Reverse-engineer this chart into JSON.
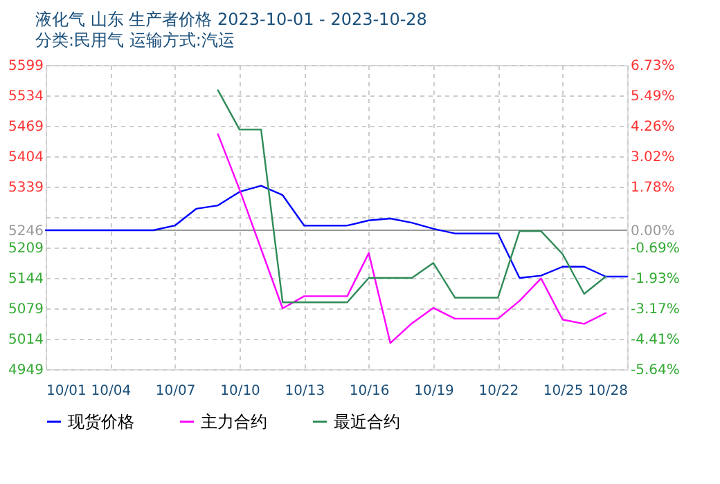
{
  "chart_data": {
    "type": "line",
    "title": "液化气 山东 生产者价格 2023-10-01 - 2023-10-28",
    "subtitle": "分类:民用气 运输方式:汽运",
    "x": [
      "2023-10-01",
      "2023-10-02",
      "2023-10-03",
      "2023-10-04",
      "2023-10-05",
      "2023-10-06",
      "2023-10-07",
      "2023-10-08",
      "2023-10-09",
      "2023-10-10",
      "2023-10-11",
      "2023-10-12",
      "2023-10-13",
      "2023-10-14",
      "2023-10-15",
      "2023-10-16",
      "2023-10-17",
      "2023-10-18",
      "2023-10-19",
      "2023-10-20",
      "2023-10-21",
      "2023-10-22",
      "2023-10-23",
      "2023-10-24",
      "2023-10-25",
      "2023-10-26",
      "2023-10-27",
      "2023-10-28"
    ],
    "series": [
      {
        "name": "现货价格",
        "color": "#0000ff",
        "values": [
          5246,
          5246,
          5246,
          5246,
          5246,
          5246,
          5256,
          5292,
          5299,
          5328,
          5341,
          5321,
          5256,
          5256,
          5256,
          5267,
          5271,
          5262,
          5249,
          5239,
          5239,
          5239,
          5144,
          5149,
          5168,
          5168,
          5147,
          5147
        ]
      },
      {
        "name": "主力合约",
        "color": "#ff00ff",
        "values": [
          null,
          null,
          null,
          null,
          null,
          null,
          null,
          null,
          5451,
          5333,
          5206,
          5079,
          5105,
          5105,
          5105,
          5197,
          5005,
          5047,
          5080,
          5057,
          5057,
          5057,
          5095,
          5143,
          5055,
          5046,
          5069,
          null
        ]
      },
      {
        "name": "最近合约",
        "color": "#2e8b57",
        "values": [
          null,
          null,
          null,
          null,
          null,
          null,
          null,
          null,
          5545,
          5461,
          5461,
          5092,
          5092,
          5092,
          5092,
          5144,
          5144,
          5144,
          5176,
          5102,
          5102,
          5102,
          5244,
          5244,
          5195,
          5110,
          5147,
          null
        ]
      }
    ],
    "xlim": [
      "2023-10-01",
      "2023-10-28"
    ],
    "xticks": [
      {
        "value": "2023-10-01",
        "label": "10/01"
      },
      {
        "value": "2023-10-04",
        "label": "10/04"
      },
      {
        "value": "2023-10-07",
        "label": "10/07"
      },
      {
        "value": "2023-10-10",
        "label": "10/10"
      },
      {
        "value": "2023-10-13",
        "label": "10/13"
      },
      {
        "value": "2023-10-16",
        "label": "10/16"
      },
      {
        "value": "2023-10-19",
        "label": "10/19"
      },
      {
        "value": "2023-10-22",
        "label": "10/22"
      },
      {
        "value": "2023-10-25",
        "label": "10/25"
      },
      {
        "value": "2023-10-28",
        "label": "10/28"
      }
    ],
    "ylim": [
      4949,
      5599
    ],
    "yticks": [
      4949,
      5014,
      5079,
      5144,
      5209,
      5246,
      {
        "value": 5274,
        "label": null
      },
      5339,
      5404,
      5469,
      5534,
      5599
    ],
    "y2lim": [
      -5.64,
      6.73
    ],
    "y2ticks": [
      {
        "value": -5.64,
        "label": "-5.64%"
      },
      {
        "value": -4.41,
        "label": "-4.41%"
      },
      {
        "value": -3.17,
        "label": "-3.17%"
      },
      {
        "value": -1.93,
        "label": "-1.93%"
      },
      {
        "value": -0.69,
        "label": "-0.69%"
      },
      {
        "value": 0,
        "label": "0.00%"
      },
      {
        "value": 0.55,
        "label": null
      },
      {
        "value": 1.78,
        "label": "1.78%"
      },
      {
        "value": 3.02,
        "label": "3.02%"
      },
      {
        "value": 4.26,
        "label": "4.26%"
      },
      {
        "value": 5.49,
        "label": "5.49%"
      },
      {
        "value": 6.73,
        "label": "6.73%"
      }
    ],
    "ref_lines": [
      {
        "axis": "y",
        "value": 5246,
        "color": "#999999",
        "line_style": "solid"
      }
    ],
    "grid": true,
    "legend": "bottom",
    "marker": "none",
    "line_style": "solid"
  }
}
